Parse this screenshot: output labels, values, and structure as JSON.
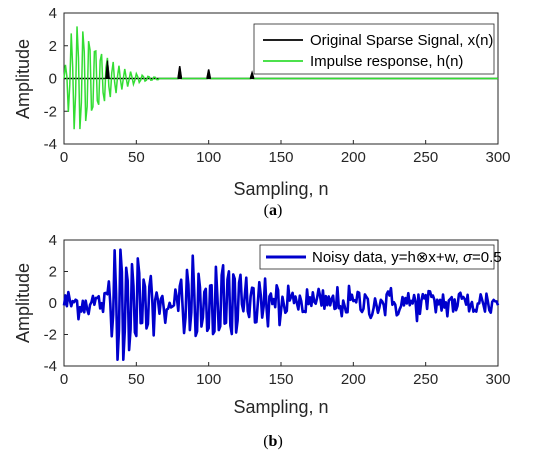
{
  "chart_data": [
    {
      "type": "line",
      "xlabel": "Sampling, n",
      "ylabel": "Amplitude",
      "xlim": [
        0,
        300
      ],
      "ylim": [
        -4,
        4
      ],
      "xticks": [
        0,
        50,
        100,
        150,
        200,
        250,
        300
      ],
      "yticks": [
        -4,
        -2,
        0,
        2,
        4
      ],
      "legend_position": "top-right",
      "caption_letter": "a",
      "series": [
        {
          "name": "Original Sparse Signal, x(n)",
          "color": "#000000",
          "spikes": [
            [
              30,
              1.1
            ],
            [
              80,
              0.75
            ],
            [
              100,
              0.55
            ],
            [
              130,
              0.35
            ]
          ]
        },
        {
          "name": "Impulse response, h(n)",
          "color": "#33dd33",
          "peak_amplitude": 3.4,
          "peak_at": 10,
          "period": 4.1,
          "decay_end": 65
        }
      ]
    },
    {
      "type": "line",
      "xlabel": "Sampling, n",
      "ylabel": "Amplitude",
      "xlim": [
        0,
        300
      ],
      "ylim": [
        -4,
        4
      ],
      "xticks": [
        0,
        50,
        100,
        150,
        200,
        250,
        300
      ],
      "yticks": [
        -4,
        -2,
        0,
        2,
        4
      ],
      "legend_position": "top-right",
      "caption_letter": "b",
      "series": [
        {
          "name_parts": [
            "Noisy data, y=h",
            "x+w, ",
            "σ",
            "=0.5"
          ],
          "color": "#0000cc",
          "noise_sigma": 0.5,
          "min": -3.6,
          "max": 3.4
        }
      ]
    }
  ],
  "caption_open": "(",
  "caption_close": ")",
  "otimes_symbol": "⊗"
}
